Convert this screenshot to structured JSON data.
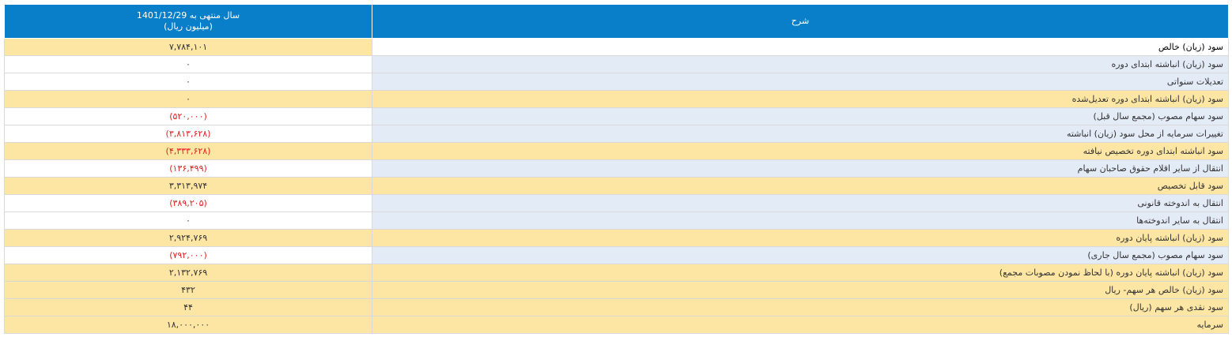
{
  "header": {
    "value_col_line1": "سال منتهی به 1401/12/29",
    "value_col_line2": "(میلیون ریال)",
    "desc_col": "شرح"
  },
  "rows": [
    {
      "desc": "سود (زیان) خالص",
      "value": "۷,۷۸۴,۱۰۱",
      "negative": false,
      "style": "first"
    },
    {
      "desc": "سود (زیان) انباشته ابتدای دوره",
      "value": "۰",
      "negative": false,
      "style": "alt-white"
    },
    {
      "desc": "تعدیلات سنواتی",
      "value": "۰",
      "negative": false,
      "style": "alt-white"
    },
    {
      "desc": "سود (زیان) انباشته ابتدای دوره تعدیل‌شده",
      "value": "۰",
      "negative": false,
      "style": "alt-yellow"
    },
    {
      "desc": "سود سهام مصوب (مجمع سال قبل)",
      "value": "(۵۲۰,۰۰۰)",
      "negative": true,
      "style": "alt-white"
    },
    {
      "desc": "تغییرات سرمایه از محل سود (زیان) انباشته",
      "value": "(۳,۸۱۳,۶۲۸)",
      "negative": true,
      "style": "alt-white"
    },
    {
      "desc": "سود انباشته ابتدای دوره تخصیص نیافته",
      "value": "(۴,۳۳۳,۶۲۸)",
      "negative": true,
      "style": "alt-yellow"
    },
    {
      "desc": "انتقال از سایر اقلام حقوق صاحبان سهام",
      "value": "(۱۳۶,۴۹۹)",
      "negative": true,
      "style": "alt-white"
    },
    {
      "desc": "سود قابل تخصیص",
      "value": "۳,۳۱۳,۹۷۴",
      "negative": false,
      "style": "alt-yellow"
    },
    {
      "desc": "انتقال به اندوخته قانونی",
      "value": "(۳۸۹,۲۰۵)",
      "negative": true,
      "style": "alt-white"
    },
    {
      "desc": "انتقال به سایر اندوخته‌ها",
      "value": "۰",
      "negative": false,
      "style": "alt-white"
    },
    {
      "desc": "سود (زیان) انباشته پایان دوره",
      "value": "۲,۹۲۴,۷۶۹",
      "negative": false,
      "style": "alt-yellow"
    },
    {
      "desc": "سود سهام مصوب (مجمع سال جاری)",
      "value": "(۷۹۲,۰۰۰)",
      "negative": true,
      "style": "alt-white"
    },
    {
      "desc": "سود (زیان) انباشته پایان دوره (با لحاظ نمودن مصوبات مجمع)",
      "value": "۲,۱۳۲,۷۶۹",
      "negative": false,
      "style": "alt-yellow"
    },
    {
      "desc": "سود (زیان) خالص هر سهم- ریال",
      "value": "۴۳۲",
      "negative": false,
      "style": "alt-yellow"
    },
    {
      "desc": "سود نقدی هر سهم (ریال)",
      "value": "۴۴",
      "negative": false,
      "style": "alt-yellow"
    },
    {
      "desc": "سرمایه",
      "value": "۱۸,۰۰۰,۰۰۰",
      "negative": false,
      "style": "alt-yellow"
    }
  ]
}
